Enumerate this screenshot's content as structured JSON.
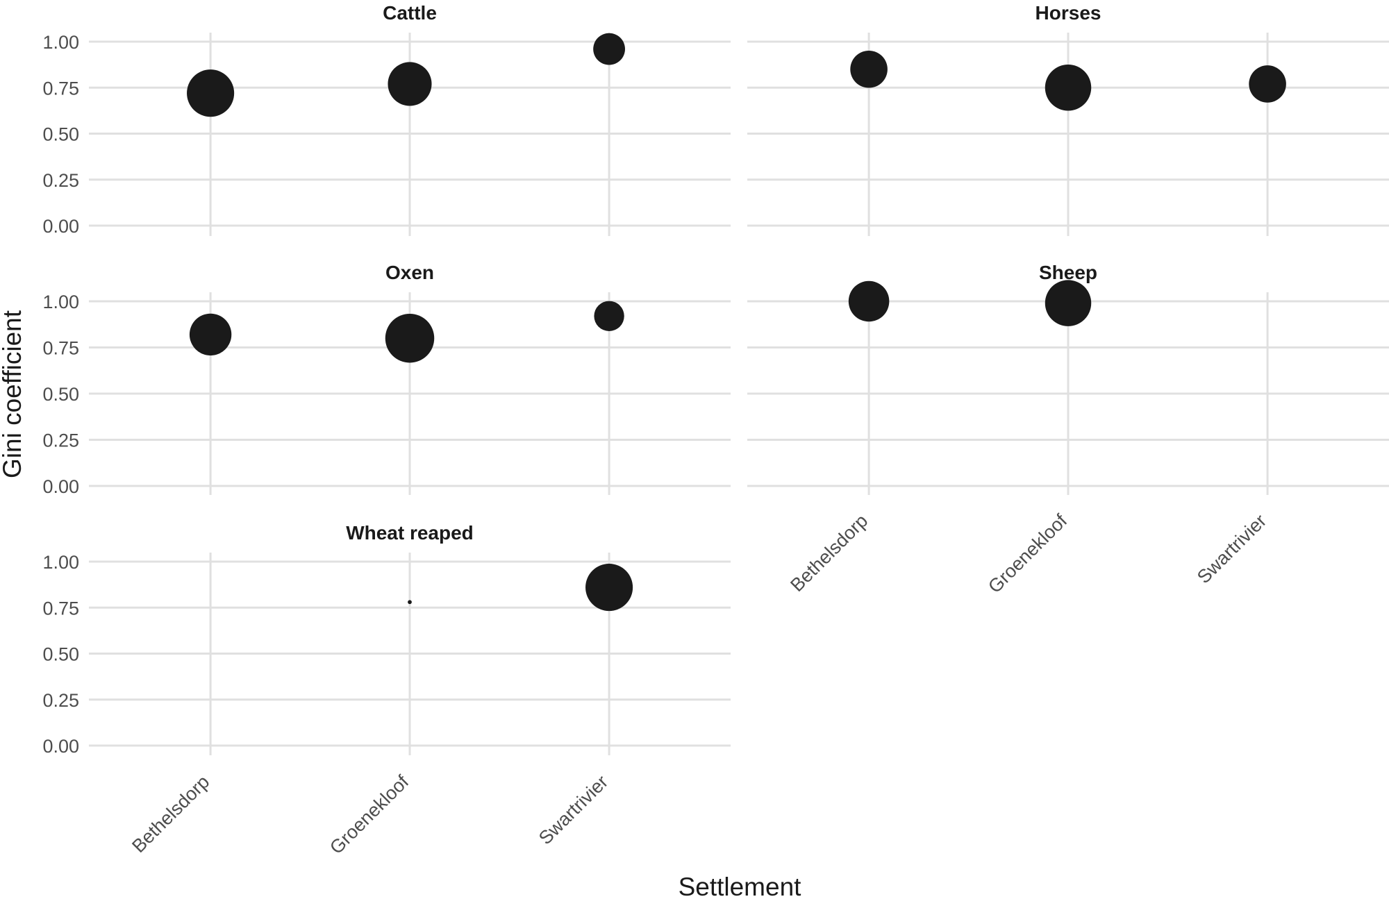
{
  "chart_data": {
    "type": "scatter",
    "xlabel": "Settlement",
    "ylabel": "Gini coefficient",
    "categories": [
      "Bethelsdorp",
      "Groenekloof",
      "Swartrivier"
    ],
    "yticks": [
      "0.00",
      "0.25",
      "0.50",
      "0.75",
      "1.00"
    ],
    "ylim": [
      0,
      1
    ],
    "grid": true,
    "point_color": "#1a1a1a",
    "note": "Point area encodes relative group size (unlabelled)",
    "facets": [
      {
        "title": "Cattle",
        "points": [
          {
            "x": "Bethelsdorp",
            "y": 0.72,
            "size": 2.1
          },
          {
            "x": "Groenekloof",
            "y": 0.77,
            "size": 1.8
          },
          {
            "x": "Swartrivier",
            "y": 0.96,
            "size": 0.95
          }
        ]
      },
      {
        "title": "Horses",
        "points": [
          {
            "x": "Bethelsdorp",
            "y": 0.85,
            "size": 1.3
          },
          {
            "x": "Groenekloof",
            "y": 0.75,
            "size": 2.0
          },
          {
            "x": "Swartrivier",
            "y": 0.77,
            "size": 1.3
          }
        ]
      },
      {
        "title": "Oxen",
        "points": [
          {
            "x": "Bethelsdorp",
            "y": 0.82,
            "size": 1.65
          },
          {
            "x": "Groenekloof",
            "y": 0.8,
            "size": 2.25
          },
          {
            "x": "Swartrivier",
            "y": 0.92,
            "size": 0.85
          }
        ]
      },
      {
        "title": "Sheep",
        "points": [
          {
            "x": "Bethelsdorp",
            "y": 1.0,
            "size": 1.55
          },
          {
            "x": "Groenekloof",
            "y": 0.99,
            "size": 2.0
          }
        ]
      },
      {
        "title": "Wheat reaped",
        "points": [
          {
            "x": "Groenekloof",
            "y": 0.78,
            "size": 0.015
          },
          {
            "x": "Swartrivier",
            "y": 0.86,
            "size": 2.1
          }
        ]
      }
    ]
  }
}
